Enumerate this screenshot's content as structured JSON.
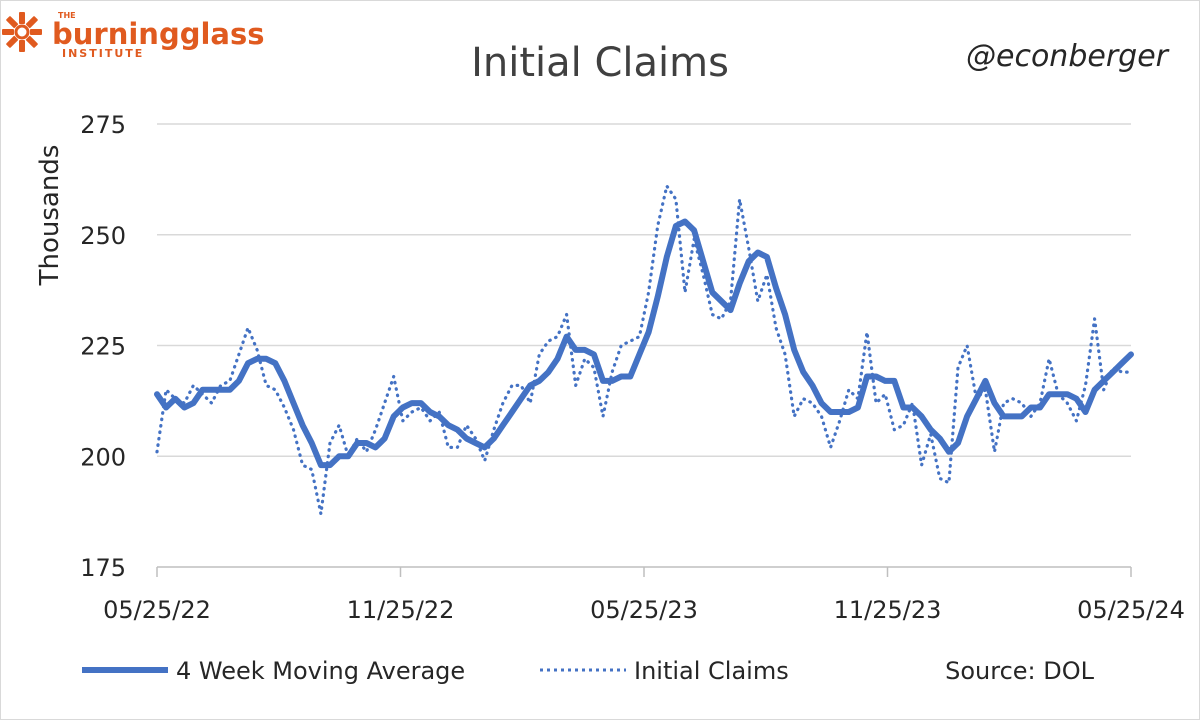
{
  "brand": {
    "logo_top": "THE",
    "logo_main": "burningglass",
    "logo_sub": "INSTITUTE",
    "color": "#e05a1f",
    "icon": "sun-burst-icon"
  },
  "handle": "@econberger",
  "source": "Source: DOL",
  "chart_data": {
    "type": "line",
    "title": "Initial Claims",
    "xlabel": "",
    "ylabel": "Thousands",
    "ylim": [
      175,
      275
    ],
    "yticks": [
      "275",
      "250",
      "225",
      "200",
      "175"
    ],
    "xticks": [
      "05/25/22",
      "11/25/22",
      "05/25/23",
      "11/25/23",
      "05/25/24"
    ],
    "grid": true,
    "legend_position": "bottom",
    "colors": {
      "series": "#4472c4",
      "grid": "#d9d9d9"
    },
    "series": [
      {
        "name": "4 Week Moving Average",
        "style": "solid",
        "values": [
          214,
          211,
          213,
          211,
          212,
          215,
          215,
          215,
          215,
          217,
          221,
          222,
          222,
          221,
          217,
          212,
          207,
          203,
          198,
          198,
          200,
          200,
          203,
          203,
          202,
          204,
          209,
          211,
          212,
          212,
          210,
          209,
          207,
          206,
          204,
          203,
          202,
          204,
          207,
          210,
          213,
          216,
          217,
          219,
          222,
          227,
          224,
          224,
          223,
          217,
          217,
          218,
          218,
          223,
          228,
          236,
          245,
          252,
          253,
          251,
          244,
          237,
          235,
          233,
          239,
          244,
          246,
          245,
          238,
          232,
          224,
          219,
          216,
          212,
          210,
          210,
          210,
          211,
          218,
          218,
          217,
          217,
          211,
          211,
          209,
          206,
          204,
          201,
          203,
          209,
          213,
          217,
          212,
          209,
          209,
          209,
          211,
          211,
          214,
          214,
          214,
          213,
          210,
          215,
          217,
          219,
          221,
          223
        ]
      },
      {
        "name": "Initial Claims",
        "style": "dotted",
        "values": [
          201,
          215,
          213,
          212,
          216,
          214,
          212,
          216,
          217,
          223,
          229,
          224,
          216,
          215,
          211,
          206,
          198,
          197,
          187,
          203,
          207,
          200,
          204,
          201,
          206,
          212,
          218,
          208,
          210,
          211,
          208,
          210,
          202,
          202,
          207,
          204,
          199,
          206,
          212,
          216,
          216,
          212,
          223,
          226,
          227,
          232,
          216,
          222,
          220,
          209,
          219,
          225,
          226,
          227,
          237,
          252,
          261,
          258,
          237,
          249,
          241,
          232,
          231,
          235,
          258,
          247,
          235,
          241,
          229,
          223,
          209,
          213,
          212,
          209,
          202,
          208,
          215,
          213,
          228,
          212,
          214,
          206,
          207,
          212,
          198,
          205,
          195,
          194,
          220,
          225,
          213,
          215,
          201,
          212,
          213,
          212,
          209,
          212,
          222,
          214,
          212,
          208,
          216,
          231,
          215,
          220,
          219,
          219
        ]
      }
    ]
  }
}
